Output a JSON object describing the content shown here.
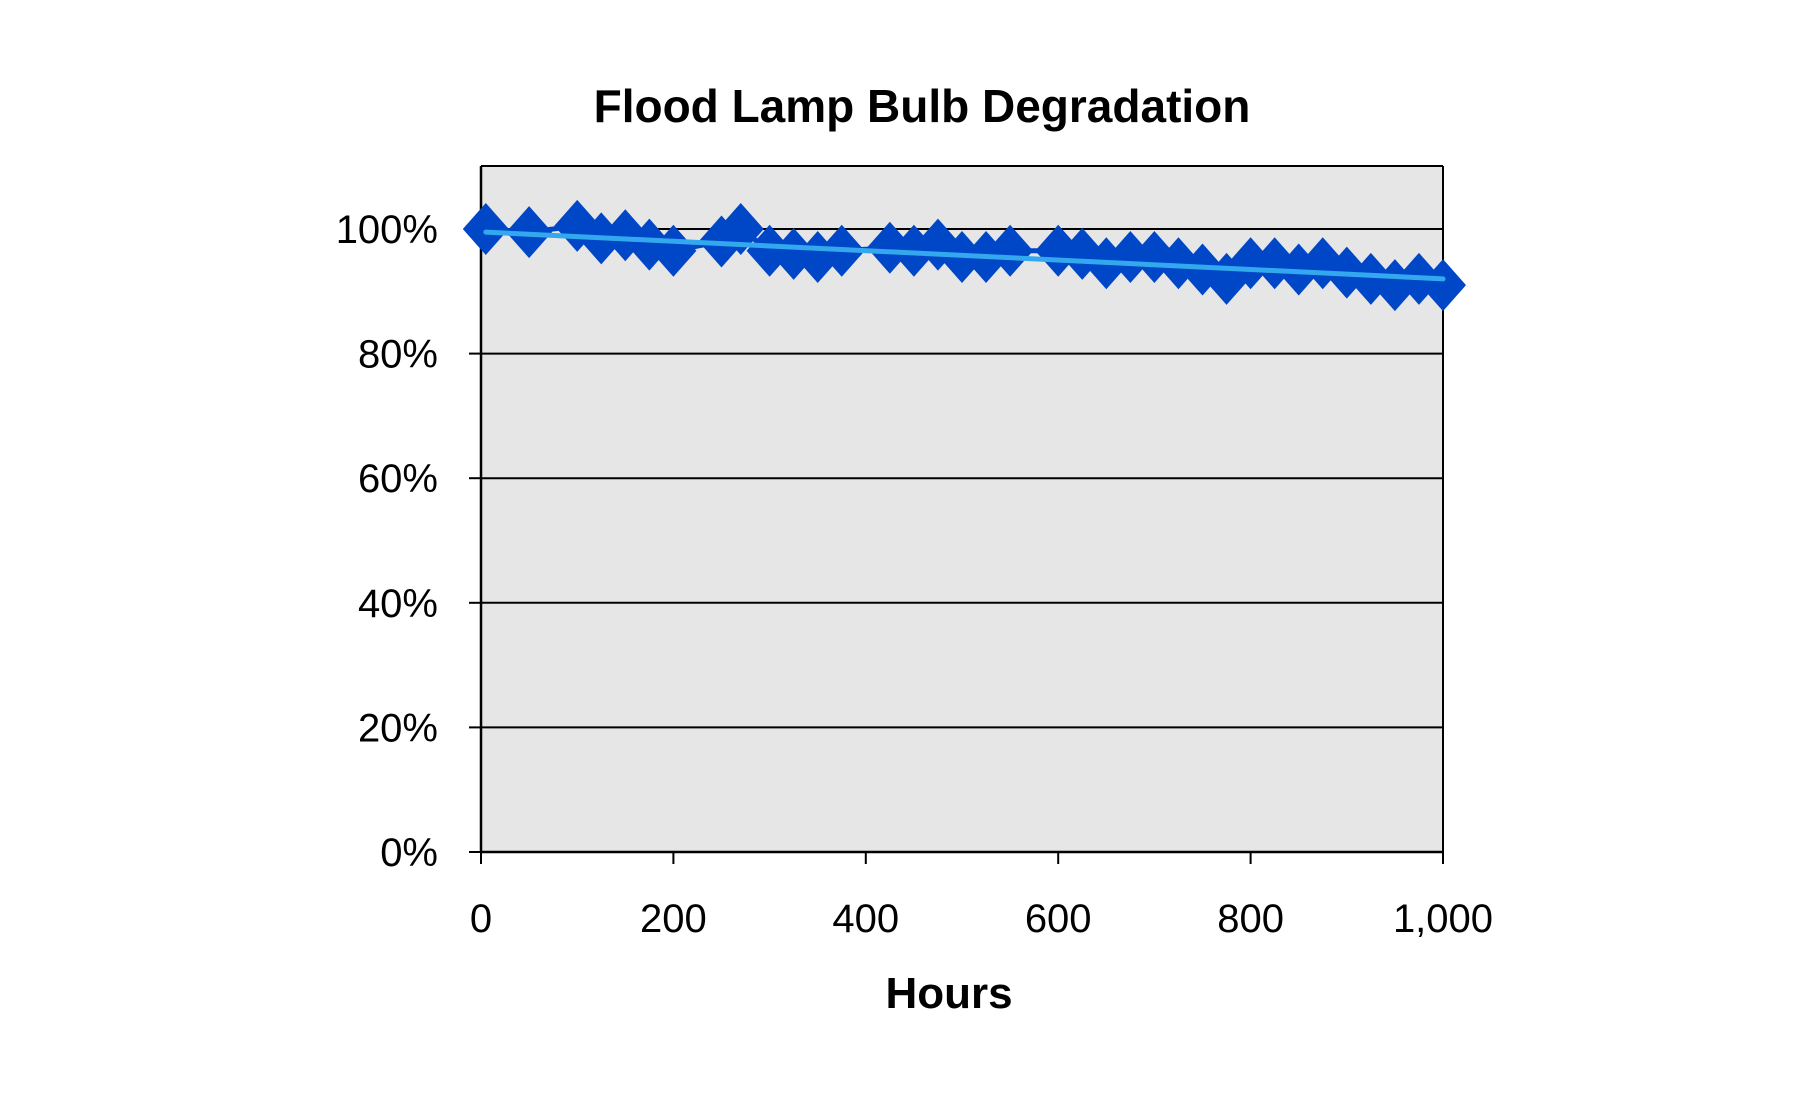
{
  "chart_data": {
    "type": "line",
    "title": "Flood Lamp Bulb Degradation",
    "xlabel": "Hours",
    "ylabel": "",
    "xlim": [
      0,
      1000
    ],
    "ylim": [
      0,
      110
    ],
    "x_ticks": [
      0,
      200,
      400,
      600,
      800,
      1000
    ],
    "x_tick_labels": [
      "0",
      "200",
      "400",
      "600",
      "800",
      "1,000"
    ],
    "y_ticks": [
      0,
      20,
      40,
      60,
      80,
      100
    ],
    "y_tick_labels": [
      "0%",
      "20%",
      "40%",
      "60%",
      "80%",
      "100%"
    ],
    "grid": "horizontal",
    "legend": "none",
    "plot_background": "#e6e6e6",
    "series": [
      {
        "marker": "diamond",
        "color": "#0047c8",
        "x": [
          5,
          50,
          100,
          125,
          150,
          175,
          200,
          250,
          270,
          300,
          325,
          350,
          375,
          425,
          450,
          475,
          500,
          525,
          550,
          600,
          625,
          650,
          675,
          700,
          725,
          750,
          775,
          800,
          825,
          850,
          875,
          900,
          925,
          950,
          975,
          1000
        ],
        "y": [
          100,
          99.5,
          100.5,
          98.5,
          99,
          97.5,
          96.5,
          98,
          100,
          96.5,
          96,
          95.5,
          96.5,
          97,
          96.5,
          97.5,
          95.5,
          95.5,
          96.5,
          96.5,
          96,
          94.5,
          95.5,
          95.5,
          94.5,
          93.5,
          92,
          94.5,
          94.5,
          93.5,
          94.5,
          93,
          92,
          91,
          92,
          91
        ]
      },
      {
        "type": "trendline",
        "color": "#33a8ee",
        "x": [
          5,
          1000
        ],
        "y": [
          99.5,
          92
        ]
      }
    ]
  }
}
